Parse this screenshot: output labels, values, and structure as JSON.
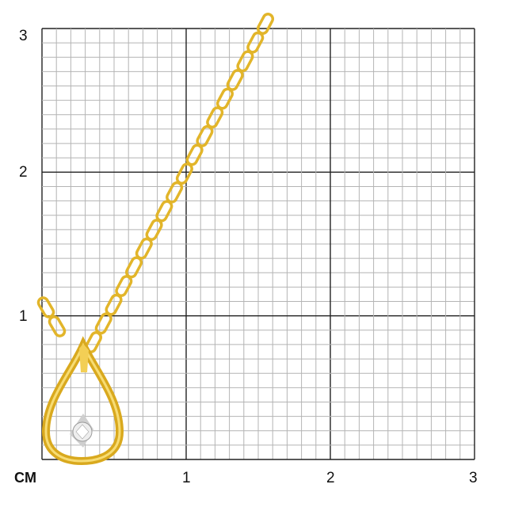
{
  "unit_label": "CM",
  "x_ticks": [
    "1",
    "2",
    "3"
  ],
  "y_ticks": [
    "3",
    "2",
    "1"
  ],
  "colors": {
    "minor_grid": "#b4b4b4",
    "major_grid": "#222222",
    "gold": "#e2b52a",
    "gold_dark": "#b8860b",
    "gold_light": "#f7dc74",
    "stone": "#e8e8e8"
  }
}
